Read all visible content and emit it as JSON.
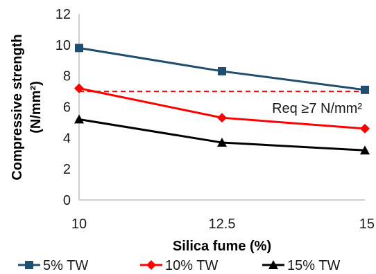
{
  "chart_data": {
    "type": "line",
    "x": [
      10,
      12.5,
      15
    ],
    "xticks": [
      "10",
      "12.5",
      "15"
    ],
    "yticks": [
      "0",
      "2",
      "4",
      "6",
      "8",
      "10",
      "12"
    ],
    "xlim": [
      10,
      15
    ],
    "ylim": [
      0,
      12
    ],
    "xlabel": "Silica fume (%)",
    "ylabel_line1": "Compressive strength",
    "ylabel_line2": "(N/mm²)",
    "grid": false,
    "legend_position": "bottom",
    "series": [
      {
        "name": "5% TW",
        "values": [
          9.8,
          8.3,
          7.1
        ],
        "color": "#1f4e6e",
        "marker": "square"
      },
      {
        "name": "10% TW",
        "values": [
          7.2,
          5.3,
          4.6
        ],
        "color": "#ff0000",
        "marker": "diamond"
      },
      {
        "name": "15% TW",
        "values": [
          5.2,
          3.7,
          3.2
        ],
        "color": "#000000",
        "marker": "triangle"
      }
    ],
    "reference_line": {
      "value": 7,
      "color": "#ff0000",
      "style": "dashed",
      "label": "Req ≥7 N/mm²"
    }
  }
}
